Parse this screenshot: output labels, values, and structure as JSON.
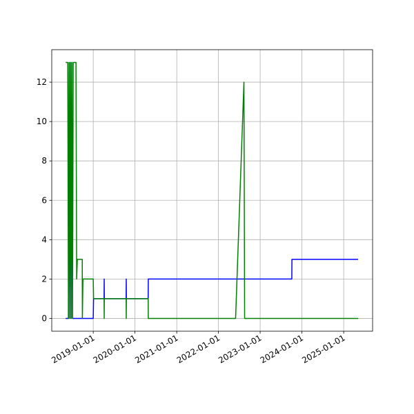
{
  "chart_data": {
    "type": "line",
    "x": [
      "2018-05-05",
      "2018-05-23",
      "2018-05-29",
      "2018-06-04",
      "2018-06-10",
      "2018-06-16",
      "2018-06-22",
      "2018-06-28",
      "2018-07-04",
      "2018-07-10",
      "2018-08-03",
      "2018-08-09",
      "2018-08-15",
      "2018-09-27",
      "2018-09-28",
      "2018-10-03",
      "2019-01-01",
      "2019-01-04",
      "2019-04-06",
      "2019-04-07",
      "2019-04-08",
      "2019-10-16",
      "2019-10-17",
      "2019-10-18",
      "2020-04-26",
      "2020-04-27",
      "2022-05-31",
      "2022-08-12",
      "2022-08-18",
      "2023-10-05",
      "2023-10-06",
      "2025-05-07"
    ],
    "series": [
      {
        "color": "#0000ff",
        "values": [
          0,
          0,
          0,
          13,
          0,
          13,
          0,
          13,
          0,
          0,
          0,
          0,
          0,
          0,
          0,
          0,
          0,
          1,
          1,
          2,
          1,
          1,
          2,
          1,
          1,
          2,
          2,
          2,
          2,
          2,
          3,
          3
        ]
      },
      {
        "color": "#008000",
        "values": [
          13,
          13,
          0,
          13,
          0,
          13,
          0,
          13,
          0,
          13,
          13,
          2,
          3,
          3,
          0,
          2,
          2,
          1,
          1,
          0,
          1,
          1,
          0,
          1,
          1,
          0,
          0,
          12,
          0,
          0,
          0,
          0
        ]
      }
    ],
    "xlim": [
      "2018-01-03",
      "2025-09-11"
    ],
    "xticks": [
      "2019-01-01",
      "2020-01-01",
      "2021-01-01",
      "2022-01-01",
      "2023-01-01",
      "2024-01-01",
      "2025-01-01"
    ],
    "ylim": [
      -0.65,
      13.65
    ],
    "yticks": [
      0,
      2,
      4,
      6,
      8,
      10,
      12
    ],
    "grid": true
  }
}
